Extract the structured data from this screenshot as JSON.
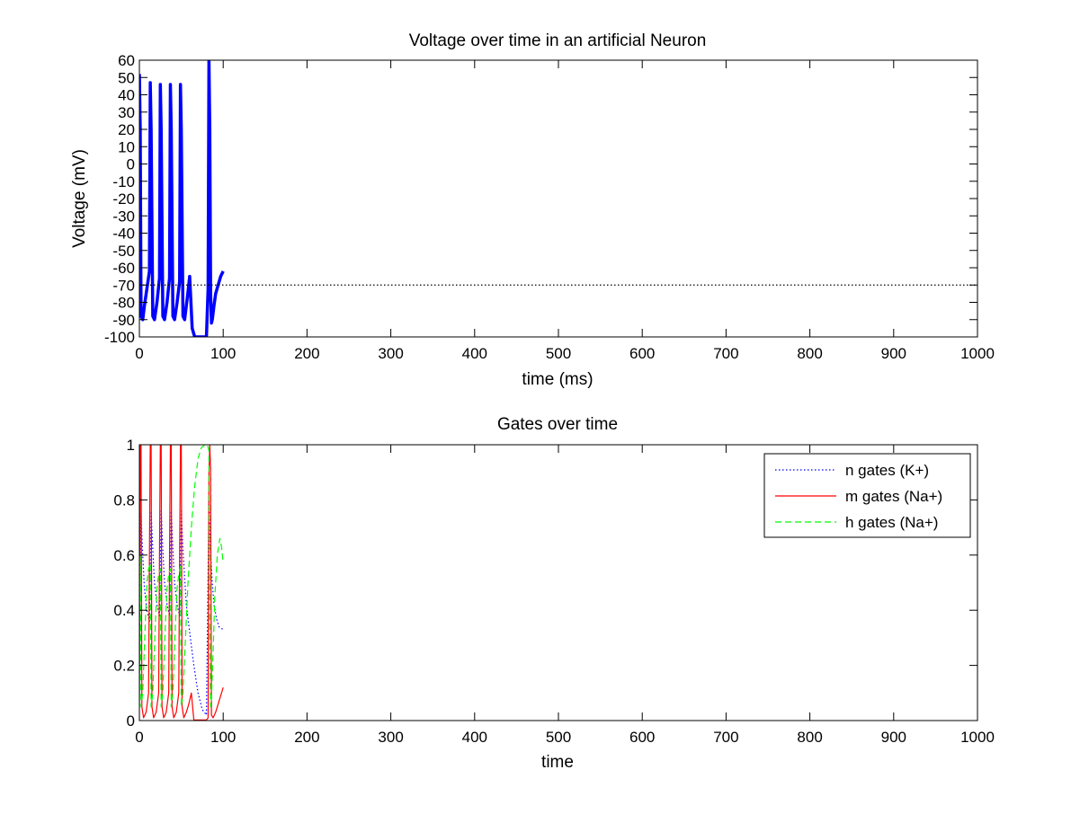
{
  "chart_data": [
    {
      "type": "line",
      "title": "Voltage over time in an artificial Neuron",
      "xlabel": "time (ms)",
      "ylabel": "Voltage (mV)",
      "xlim": [
        0,
        1000
      ],
      "ylim": [
        -100,
        60
      ],
      "xticks": [
        0,
        100,
        200,
        300,
        400,
        500,
        600,
        700,
        800,
        900,
        1000
      ],
      "yticks": [
        -100,
        -90,
        -80,
        -70,
        -60,
        -50,
        -40,
        -30,
        -20,
        -10,
        0,
        10,
        20,
        30,
        40,
        50,
        60
      ],
      "grid": false,
      "series": [
        {
          "color": "#0000ff",
          "style": "solid",
          "x": [
            0,
            1,
            2,
            4,
            6,
            9,
            12,
            13,
            14,
            16,
            18,
            21,
            24,
            25,
            26,
            28,
            30,
            33,
            36,
            37,
            38,
            40,
            42,
            45,
            48,
            49,
            50,
            52,
            54,
            56,
            58,
            60,
            63,
            66,
            70,
            75,
            80,
            82,
            83,
            84,
            85,
            86,
            87,
            88,
            89,
            91,
            94,
            97,
            100
          ],
          "y": [
            52,
            20,
            -88,
            -90,
            -82,
            -72,
            -62,
            47,
            20,
            -88,
            -90,
            -80,
            -66,
            46,
            20,
            -88,
            -90,
            -80,
            -66,
            46,
            20,
            -88,
            -90,
            -80,
            -68,
            46,
            20,
            -88,
            -90,
            -82,
            -74,
            -65,
            -95,
            -100,
            -100,
            -100,
            -100,
            -72,
            60,
            20,
            -75,
            -92,
            -90,
            -86,
            -82,
            -75,
            -70,
            -65,
            -62
          ]
        },
        {
          "color": "#000000",
          "style": "dotted",
          "x": [
            0,
            1000
          ],
          "y": [
            -70,
            -70
          ]
        }
      ]
    },
    {
      "type": "line",
      "title": "Gates over time",
      "xlabel": "time",
      "xlim": [
        0,
        1000
      ],
      "ylim": [
        0,
        1
      ],
      "xticks": [
        0,
        100,
        200,
        300,
        400,
        500,
        600,
        700,
        800,
        900,
        1000
      ],
      "yticks": [
        0,
        0.2,
        0.4,
        0.6,
        0.8,
        1
      ],
      "ytick_labels": [
        "0",
        "0.2",
        "0.4",
        "0.6",
        "0.8",
        "1"
      ],
      "grid": false,
      "legend": "top-right",
      "series": [
        {
          "name": "n gates (K+)",
          "color": "#0000ff",
          "style": "dotted",
          "x": [
            0,
            2,
            4,
            6,
            9,
            12,
            14,
            16,
            18,
            21,
            24,
            26,
            28,
            30,
            33,
            36,
            38,
            40,
            42,
            45,
            48,
            50,
            52,
            56,
            60,
            65,
            70,
            75,
            80,
            83,
            85,
            87,
            89,
            92,
            95,
            100
          ],
          "y": [
            0.32,
            0.75,
            0.6,
            0.48,
            0.4,
            0.36,
            0.76,
            0.62,
            0.5,
            0.42,
            0.38,
            0.76,
            0.62,
            0.5,
            0.42,
            0.38,
            0.76,
            0.62,
            0.5,
            0.42,
            0.38,
            0.76,
            0.62,
            0.42,
            0.32,
            0.2,
            0.1,
            0.04,
            0.02,
            0.8,
            0.6,
            0.5,
            0.42,
            0.37,
            0.34,
            0.33
          ]
        },
        {
          "name": "m gates (Na+)",
          "color": "#ff0000",
          "style": "solid",
          "x": [
            0,
            1,
            2,
            3,
            5,
            8,
            11,
            12,
            13,
            14,
            15,
            17,
            20,
            23,
            24,
            25,
            26,
            27,
            29,
            32,
            35,
            36,
            37,
            38,
            39,
            41,
            44,
            47,
            48,
            49,
            50,
            51,
            53,
            56,
            59,
            62,
            65,
            70,
            75,
            80,
            82,
            83,
            84,
            85,
            86,
            88,
            91,
            94,
            97,
            100
          ],
          "y": [
            0.05,
            1,
            1,
            0.05,
            0.01,
            0.03,
            0.1,
            0.6,
            1,
            1,
            0.05,
            0.01,
            0.03,
            0.1,
            0.6,
            1,
            1,
            0.05,
            0.01,
            0.03,
            0.1,
            0.6,
            1,
            1,
            0.05,
            0.01,
            0.03,
            0.1,
            0.6,
            1,
            1,
            0.05,
            0.01,
            0.03,
            0.06,
            0.1,
            0.002,
            0.002,
            0.002,
            0.002,
            0.01,
            0.9,
            1,
            0.9,
            0.02,
            0.01,
            0.03,
            0.06,
            0.09,
            0.12
          ]
        },
        {
          "name": "h gates (Na+)",
          "color": "#00ff00",
          "style": "dashed",
          "x": [
            0,
            1,
            2,
            4,
            7,
            9,
            11,
            13,
            14,
            16,
            19,
            21,
            23,
            25,
            26,
            28,
            31,
            33,
            35,
            37,
            38,
            40,
            43,
            45,
            47,
            49,
            50,
            52,
            55,
            58,
            62,
            66,
            70,
            74,
            78,
            81,
            83,
            84,
            85,
            86,
            88,
            90,
            93,
            96,
            98,
            100
          ],
          "y": [
            0.1,
            0.6,
            0.05,
            0.1,
            0.35,
            0.5,
            0.55,
            0.57,
            0.05,
            0.1,
            0.35,
            0.48,
            0.53,
            0.55,
            0.05,
            0.1,
            0.35,
            0.48,
            0.53,
            0.55,
            0.05,
            0.1,
            0.35,
            0.48,
            0.53,
            0.56,
            0.05,
            0.1,
            0.3,
            0.5,
            0.7,
            0.85,
            0.95,
            0.99,
            1,
            1,
            0.98,
            0.3,
            0.05,
            0.08,
            0.25,
            0.45,
            0.6,
            0.66,
            0.63,
            0.57
          ]
        }
      ]
    }
  ]
}
